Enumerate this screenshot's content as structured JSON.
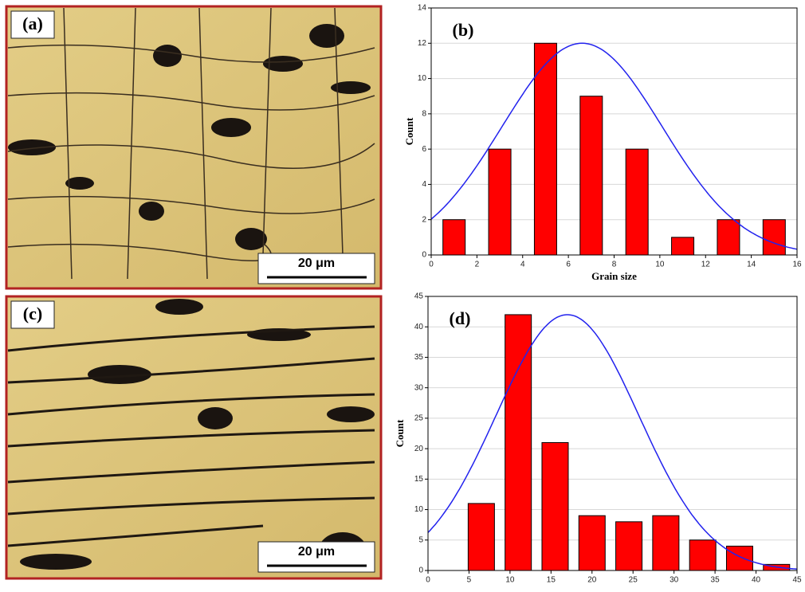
{
  "micrographs": [
    {
      "label": "(a)",
      "scale_bar": "20 μm"
    },
    {
      "label": "(c)",
      "scale_bar": "20 μm"
    }
  ],
  "chart_data": [
    {
      "type": "bar",
      "annotation": "(b)",
      "x_label": "Grain size",
      "y_label": "Count",
      "x": [
        1,
        3,
        5,
        7,
        9,
        11,
        13,
        15
      ],
      "values": [
        2,
        6,
        12,
        9,
        6,
        1,
        2,
        2
      ],
      "color": "#ff0000",
      "xlim": [
        0,
        16
      ],
      "xticks": [
        0,
        2,
        4,
        6,
        8,
        10,
        12,
        14,
        16
      ],
      "ylim": [
        0,
        14
      ],
      "yticks": [
        0,
        2,
        4,
        6,
        8,
        10,
        12,
        14
      ],
      "grid": true,
      "fit": {
        "type": "normal",
        "mean": 6.6,
        "sd": 3.5,
        "peak": 12,
        "color": "#2222ee"
      }
    },
    {
      "type": "bar",
      "annotation": "(d)",
      "y_label": "Count",
      "x": [
        6.5,
        11,
        15.5,
        20,
        24.5,
        29,
        33.5,
        38,
        42.5
      ],
      "values": [
        11,
        42,
        21,
        9,
        8,
        9,
        5,
        4,
        1
      ],
      "color": "#ff0000",
      "xlim": [
        0,
        45
      ],
      "xticks": [
        0,
        5,
        10,
        15,
        20,
        25,
        30,
        35,
        40,
        45
      ],
      "ylim": [
        0,
        45
      ],
      "yticks": [
        0,
        5,
        10,
        15,
        20,
        25,
        30,
        35,
        40,
        45
      ],
      "grid": true,
      "fit": {
        "type": "normal",
        "mean": 17,
        "sd": 8.7,
        "peak": 42,
        "color": "#2222ee"
      }
    }
  ]
}
